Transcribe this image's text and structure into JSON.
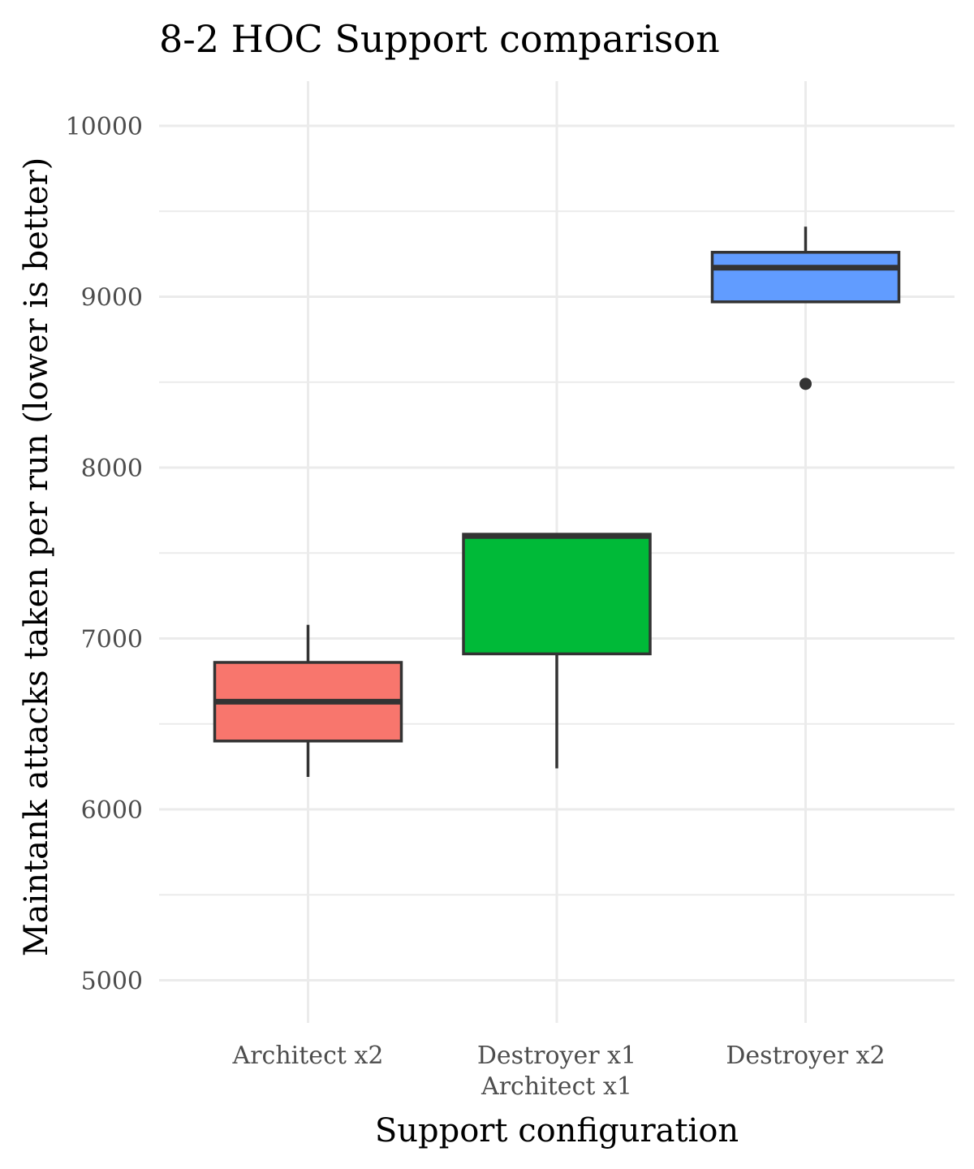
{
  "chart_data": {
    "type": "boxplot",
    "title": "8-2 HOC Support comparison",
    "xlabel": "Support configuration",
    "ylabel": "Maintank attacks taken per run (lower is better)",
    "ylim": [
      4750,
      10250
    ],
    "yticks": [
      5000,
      6000,
      7000,
      8000,
      9000,
      10000
    ],
    "yminor": [
      5500,
      6500,
      7500,
      8500,
      9500
    ],
    "grid": true,
    "legend": "none",
    "categories": [
      {
        "label_lines": [
          "Architect x2"
        ],
        "color": "#F8766D",
        "lower_whisker": 6190,
        "q1": 6400,
        "median": 6630,
        "q3": 6860,
        "upper_whisker": 7080,
        "outliers": []
      },
      {
        "label_lines": [
          "Destroyer x1",
          "Architect x1"
        ],
        "color": "#00BA38",
        "lower_whisker": 6240,
        "q1": 6910,
        "median": 7600,
        "q3": 7610,
        "upper_whisker": 7610,
        "outliers": []
      },
      {
        "label_lines": [
          "Destroyer x2"
        ],
        "color": "#619CFF",
        "lower_whisker": 8970,
        "q1": 8970,
        "median": 9170,
        "q3": 9260,
        "upper_whisker": 9410,
        "outliers": [
          8490
        ]
      }
    ]
  }
}
